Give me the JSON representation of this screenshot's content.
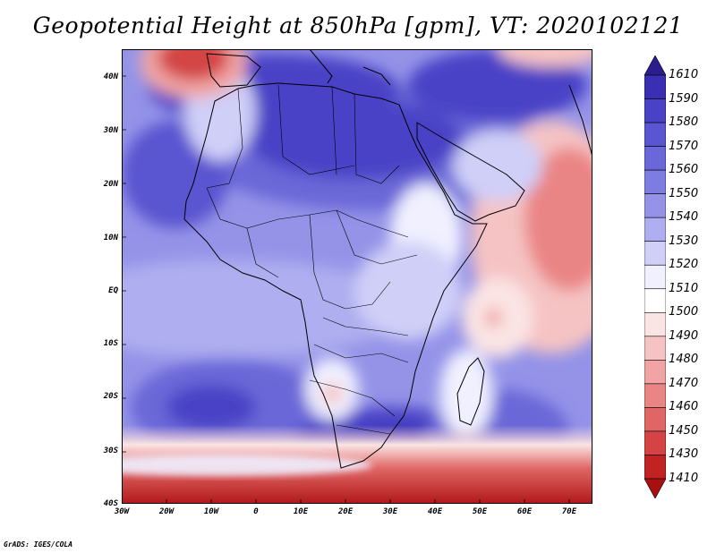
{
  "title": "Geopotential Height at 850hPa [gpm], VT: 2020102121",
  "footer": "GrADS: IGES/COLA",
  "lat_labels": [
    "40N",
    "30N",
    "20N",
    "10N",
    "EQ",
    "10S",
    "20S",
    "30S",
    "40S"
  ],
  "lon_labels": [
    "30W",
    "20W",
    "10W",
    "0",
    "10E",
    "20E",
    "30E",
    "40E",
    "50E",
    "60E",
    "70E"
  ],
  "colorbar": {
    "labels": [
      "1610",
      "1590",
      "1580",
      "1570",
      "1560",
      "1550",
      "1540",
      "1530",
      "1520",
      "1510",
      "1500",
      "1490",
      "1480",
      "1470",
      "1460",
      "1450",
      "1430",
      "1410"
    ],
    "colors": [
      "#2b1d8f",
      "#3a2fb2",
      "#4a42c6",
      "#5a55d0",
      "#6a68d8",
      "#7d7ce0",
      "#9493e8",
      "#aeaef0",
      "#cfcff8",
      "#f0f0ff",
      "#ffffff",
      "#fbe4e4",
      "#f5c3c3",
      "#f0a4a4",
      "#ea8585",
      "#e06666",
      "#d44444",
      "#c12222",
      "#a80f0f"
    ]
  }
}
